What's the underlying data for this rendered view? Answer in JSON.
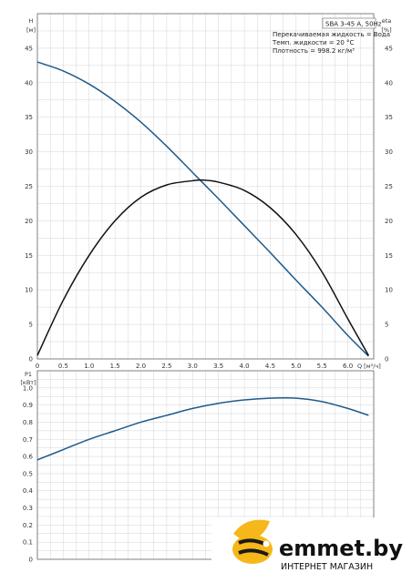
{
  "chart_data": [
    {
      "type": "line",
      "title": "SBA 3-45 A, 50Hz",
      "annotations": [
        "Перекачиваемая жидкость = Вода",
        "Темп. жидкости = 20 °C",
        "Плотность = 998.2 кг/м³"
      ],
      "ylabel": "H",
      "yunit": "[м]",
      "y2label": "eta",
      "y2unit": "[%]",
      "xlabel": "Q [м³/ч]",
      "xlim": [
        0,
        6.5
      ],
      "ylim": [
        0,
        50
      ],
      "y2lim": [
        0,
        50
      ],
      "xticks": [
        "0",
        "0.5",
        "1.0",
        "1.5",
        "2.0",
        "2.5",
        "3.0",
        "3.5",
        "4.0",
        "4.5",
        "5.0",
        "5.5",
        "6.0"
      ],
      "xtick_values": [
        0,
        0.5,
        1.0,
        1.5,
        2.0,
        2.5,
        3.0,
        3.5,
        4.0,
        4.5,
        5.0,
        5.5,
        6.0
      ],
      "yticks": [
        "0",
        "5",
        "10",
        "15",
        "20",
        "25",
        "30",
        "35",
        "40",
        "45"
      ],
      "ytick_values": [
        0,
        5,
        10,
        15,
        20,
        25,
        30,
        35,
        40,
        45
      ],
      "grid": true,
      "series": [
        {
          "color": "#1f5a8a",
          "axis": "left",
          "x": [
            0,
            0.5,
            1.0,
            1.5,
            2.0,
            2.5,
            3.0,
            3.5,
            4.0,
            4.5,
            5.0,
            5.5,
            6.0,
            6.4
          ],
          "values": [
            43.0,
            41.7,
            39.8,
            37.3,
            34.3,
            30.8,
            27.0,
            23.2,
            19.3,
            15.4,
            11.4,
            7.5,
            3.4,
            0.4
          ]
        },
        {
          "color": "#111111",
          "axis": "right",
          "x": [
            0,
            0.5,
            1.0,
            1.5,
            2.0,
            2.5,
            3.0,
            3.2,
            3.5,
            4.0,
            4.5,
            5.0,
            5.5,
            6.0,
            6.4
          ],
          "values": [
            0.5,
            8.5,
            15.0,
            20.0,
            23.4,
            25.2,
            25.8,
            25.9,
            25.6,
            24.4,
            21.9,
            18.0,
            12.6,
            5.8,
            0.5
          ]
        }
      ]
    },
    {
      "type": "line",
      "ylabel": "P1",
      "yunit": "[кВт]",
      "xlim": [
        0,
        6.5
      ],
      "ylim": [
        0,
        1.1
      ],
      "yticks": [
        "0",
        "0.1",
        "0.2",
        "0.3",
        "0.4",
        "0.5",
        "0.6",
        "0.7",
        "0.8",
        "0.9",
        "1.0"
      ],
      "ytick_values": [
        0,
        0.1,
        0.2,
        0.3,
        0.4,
        0.5,
        0.6,
        0.7,
        0.8,
        0.9,
        1.0
      ],
      "grid": true,
      "series": [
        {
          "color": "#1f5a8a",
          "x": [
            0,
            0.5,
            1.0,
            1.5,
            2.0,
            2.5,
            3.0,
            3.5,
            4.0,
            4.5,
            5.0,
            5.5,
            6.0,
            6.4
          ],
          "values": [
            0.58,
            0.64,
            0.7,
            0.75,
            0.8,
            0.84,
            0.88,
            0.91,
            0.93,
            0.94,
            0.94,
            0.92,
            0.88,
            0.84
          ]
        }
      ]
    }
  ],
  "watermark": {
    "brand": "emmet.by",
    "tagline": "ИНТЕРНЕТ МАГАЗИН",
    "colors": {
      "yellow": "#f6b71a",
      "dark": "#1a1a1a"
    }
  }
}
